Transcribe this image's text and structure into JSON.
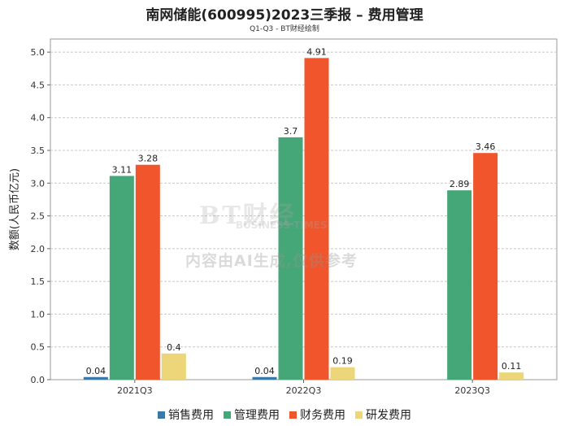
{
  "chart_data": {
    "type": "bar",
    "title": "南网储能(600995)2023三季报 – 费用管理",
    "subtitle": "Q1-Q3 - BT财经绘制",
    "ylabel": "数额(人民币亿元)",
    "xlabel": "",
    "categories": [
      "2021Q3",
      "2022Q3",
      "2023Q3"
    ],
    "ylim": [
      0,
      5.2
    ],
    "yticks": [
      "0.0",
      "0.5",
      "1.0",
      "1.5",
      "2.0",
      "2.5",
      "3.0",
      "3.5",
      "4.0",
      "4.5",
      "5.0"
    ],
    "legend_position": "bottom",
    "series": [
      {
        "name": "销售费用",
        "color": "#3a78a8",
        "values": [
          0.04,
          0.04,
          null
        ],
        "labels": [
          "0.04",
          "0.04",
          ""
        ]
      },
      {
        "name": "管理费用",
        "color": "#45a677",
        "values": [
          3.11,
          3.7,
          2.89
        ],
        "labels": [
          "3.11",
          "3.7",
          "2.89"
        ]
      },
      {
        "name": "财务费用",
        "color": "#f0552b",
        "values": [
          3.28,
          4.91,
          3.46
        ],
        "labels": [
          "3.28",
          "4.91",
          "3.46"
        ]
      },
      {
        "name": "研发费用",
        "color": "#edd57a",
        "values": [
          0.4,
          0.19,
          0.11
        ],
        "labels": [
          "0.4",
          "0.19",
          "0.11"
        ]
      }
    ]
  },
  "watermark": {
    "logo": "BT财经",
    "sub": "BUSINESS TIMES",
    "notice": "内容由AI生成,仅供参考"
  }
}
